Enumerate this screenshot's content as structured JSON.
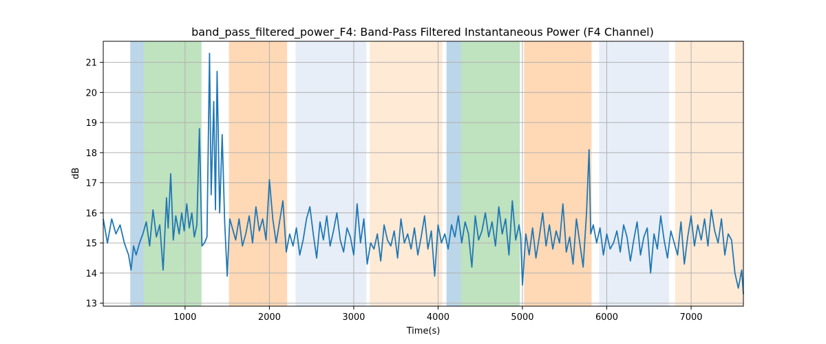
{
  "chart_data": {
    "type": "line",
    "title": "band_pass_filtered_power_F4: Band-Pass Filtered Instantaneous Power (F4 Channel)",
    "xlabel": "Time(s)",
    "ylabel": "dB",
    "xlim": [
      30,
      7620
    ],
    "ylim": [
      12.9,
      21.7
    ],
    "grid": true,
    "x_ticks": [
      1000,
      2000,
      3000,
      4000,
      5000,
      6000,
      7000
    ],
    "y_ticks": [
      13,
      14,
      15,
      16,
      17,
      18,
      19,
      20,
      21
    ],
    "line_color": "#1f77b4",
    "bands": [
      {
        "x0": 350,
        "x1": 510,
        "color": "#1f77b4",
        "alpha": 0.3
      },
      {
        "x0": 510,
        "x1": 1195,
        "color": "#2ca02c",
        "alpha": 0.3
      },
      {
        "x0": 1520,
        "x1": 2210,
        "color": "#ff7f0e",
        "alpha": 0.3
      },
      {
        "x0": 2310,
        "x1": 3150,
        "color": "#aec7e8",
        "alpha": 0.3
      },
      {
        "x0": 3190,
        "x1": 4050,
        "color": "#ffbb78",
        "alpha": 0.3
      },
      {
        "x0": 4100,
        "x1": 4270,
        "color": "#1f77b4",
        "alpha": 0.3
      },
      {
        "x0": 4270,
        "x1": 4970,
        "color": "#2ca02c",
        "alpha": 0.3
      },
      {
        "x0": 5020,
        "x1": 5820,
        "color": "#ff7f0e",
        "alpha": 0.3
      },
      {
        "x0": 5910,
        "x1": 6740,
        "color": "#aec7e8",
        "alpha": 0.3
      },
      {
        "x0": 6810,
        "x1": 7620,
        "color": "#ffbb78",
        "alpha": 0.3
      }
    ],
    "series": [
      {
        "x": [
          30,
          80,
          130,
          180,
          230,
          280,
          330,
          360,
          390,
          420,
          460,
          500,
          540,
          580,
          620,
          660,
          700,
          740,
          780,
          800,
          830,
          860,
          890,
          930,
          960,
          990,
          1020,
          1050,
          1080,
          1110,
          1140,
          1170,
          1200,
          1230,
          1260,
          1290,
          1310,
          1340,
          1360,
          1380,
          1410,
          1440,
          1470,
          1500,
          1530,
          1560,
          1600,
          1640,
          1680,
          1720,
          1760,
          1800,
          1840,
          1880,
          1920,
          1960,
          2000,
          2040,
          2080,
          2120,
          2160,
          2200,
          2240,
          2280,
          2320,
          2360,
          2400,
          2440,
          2480,
          2520,
          2560,
          2600,
          2640,
          2680,
          2720,
          2760,
          2800,
          2840,
          2880,
          2920,
          2960,
          3000,
          3040,
          3080,
          3120,
          3160,
          3200,
          3240,
          3280,
          3320,
          3360,
          3400,
          3440,
          3480,
          3520,
          3560,
          3600,
          3640,
          3680,
          3720,
          3760,
          3800,
          3840,
          3880,
          3920,
          3960,
          4000,
          4040,
          4080,
          4120,
          4160,
          4200,
          4240,
          4280,
          4320,
          4360,
          4400,
          4440,
          4480,
          4520,
          4560,
          4600,
          4640,
          4680,
          4720,
          4760,
          4800,
          4840,
          4880,
          4920,
          4960,
          4980,
          5000,
          5040,
          5080,
          5120,
          5160,
          5200,
          5240,
          5280,
          5320,
          5360,
          5400,
          5440,
          5480,
          5520,
          5560,
          5600,
          5640,
          5680,
          5720,
          5760,
          5790,
          5810,
          5840,
          5880,
          5920,
          5960,
          6000,
          6040,
          6080,
          6120,
          6160,
          6200,
          6240,
          6280,
          6320,
          6360,
          6400,
          6440,
          6480,
          6520,
          6560,
          6600,
          6640,
          6680,
          6720,
          6760,
          6800,
          6840,
          6880,
          6920,
          6960,
          7000,
          7040,
          7080,
          7120,
          7160,
          7200,
          7240,
          7280,
          7320,
          7360,
          7400,
          7440,
          7480,
          7520,
          7560,
          7600,
          7620
        ],
        "y": [
          15.8,
          15.0,
          15.8,
          15.3,
          15.6,
          15.0,
          14.6,
          14.1,
          14.9,
          14.6,
          15.0,
          15.3,
          15.7,
          14.9,
          16.1,
          15.2,
          15.6,
          14.1,
          16.5,
          15.5,
          17.3,
          15.1,
          15.9,
          15.3,
          16.0,
          15.4,
          16.3,
          15.5,
          16.0,
          15.2,
          15.6,
          18.8,
          14.9,
          15.0,
          15.2,
          21.3,
          16.6,
          19.7,
          16.1,
          20.7,
          16.0,
          18.6,
          15.7,
          13.9,
          15.8,
          15.5,
          15.1,
          15.8,
          14.9,
          15.3,
          15.9,
          15.0,
          16.2,
          15.4,
          15.8,
          15.1,
          17.1,
          15.8,
          15.0,
          15.7,
          16.4,
          14.7,
          15.3,
          14.9,
          15.5,
          14.6,
          15.1,
          15.8,
          16.2,
          15.3,
          14.5,
          15.7,
          15.1,
          15.9,
          14.9,
          15.4,
          16.0,
          15.1,
          14.7,
          15.5,
          15.2,
          14.6,
          16.3,
          15.0,
          15.8,
          14.3,
          15.0,
          14.8,
          15.3,
          14.4,
          15.6,
          15.1,
          14.9,
          15.4,
          14.5,
          15.8,
          15.0,
          15.3,
          14.8,
          15.5,
          14.6,
          15.2,
          15.9,
          14.8,
          15.4,
          13.9,
          15.6,
          15.0,
          15.3,
          14.8,
          15.6,
          15.2,
          15.9,
          15.0,
          15.7,
          15.3,
          14.2,
          15.9,
          15.1,
          15.4,
          16.0,
          15.2,
          15.7,
          14.9,
          16.2,
          15.3,
          15.8,
          14.6,
          16.4,
          15.1,
          15.6,
          15.2,
          13.6,
          15.3,
          14.6,
          15.5,
          14.5,
          15.2,
          16.0,
          14.9,
          15.6,
          14.8,
          15.4,
          15.0,
          16.3,
          14.7,
          15.2,
          14.3,
          15.8,
          15.0,
          14.2,
          16.0,
          18.1,
          15.3,
          15.6,
          15.0,
          15.5,
          14.6,
          15.3,
          14.8,
          15.0,
          15.4,
          14.7,
          15.6,
          15.2,
          14.4,
          15.1,
          15.7,
          14.6,
          15.2,
          15.5,
          14.0,
          15.3,
          14.8,
          15.9,
          15.1,
          14.5,
          15.4,
          15.0,
          14.6,
          15.7,
          14.3,
          15.2,
          15.9,
          14.9,
          15.6,
          15.1,
          15.8,
          14.9,
          16.1,
          15.4,
          15.0,
          15.8,
          14.6,
          15.3,
          15.1,
          14.0,
          13.5,
          14.1,
          13.3
        ]
      }
    ]
  }
}
